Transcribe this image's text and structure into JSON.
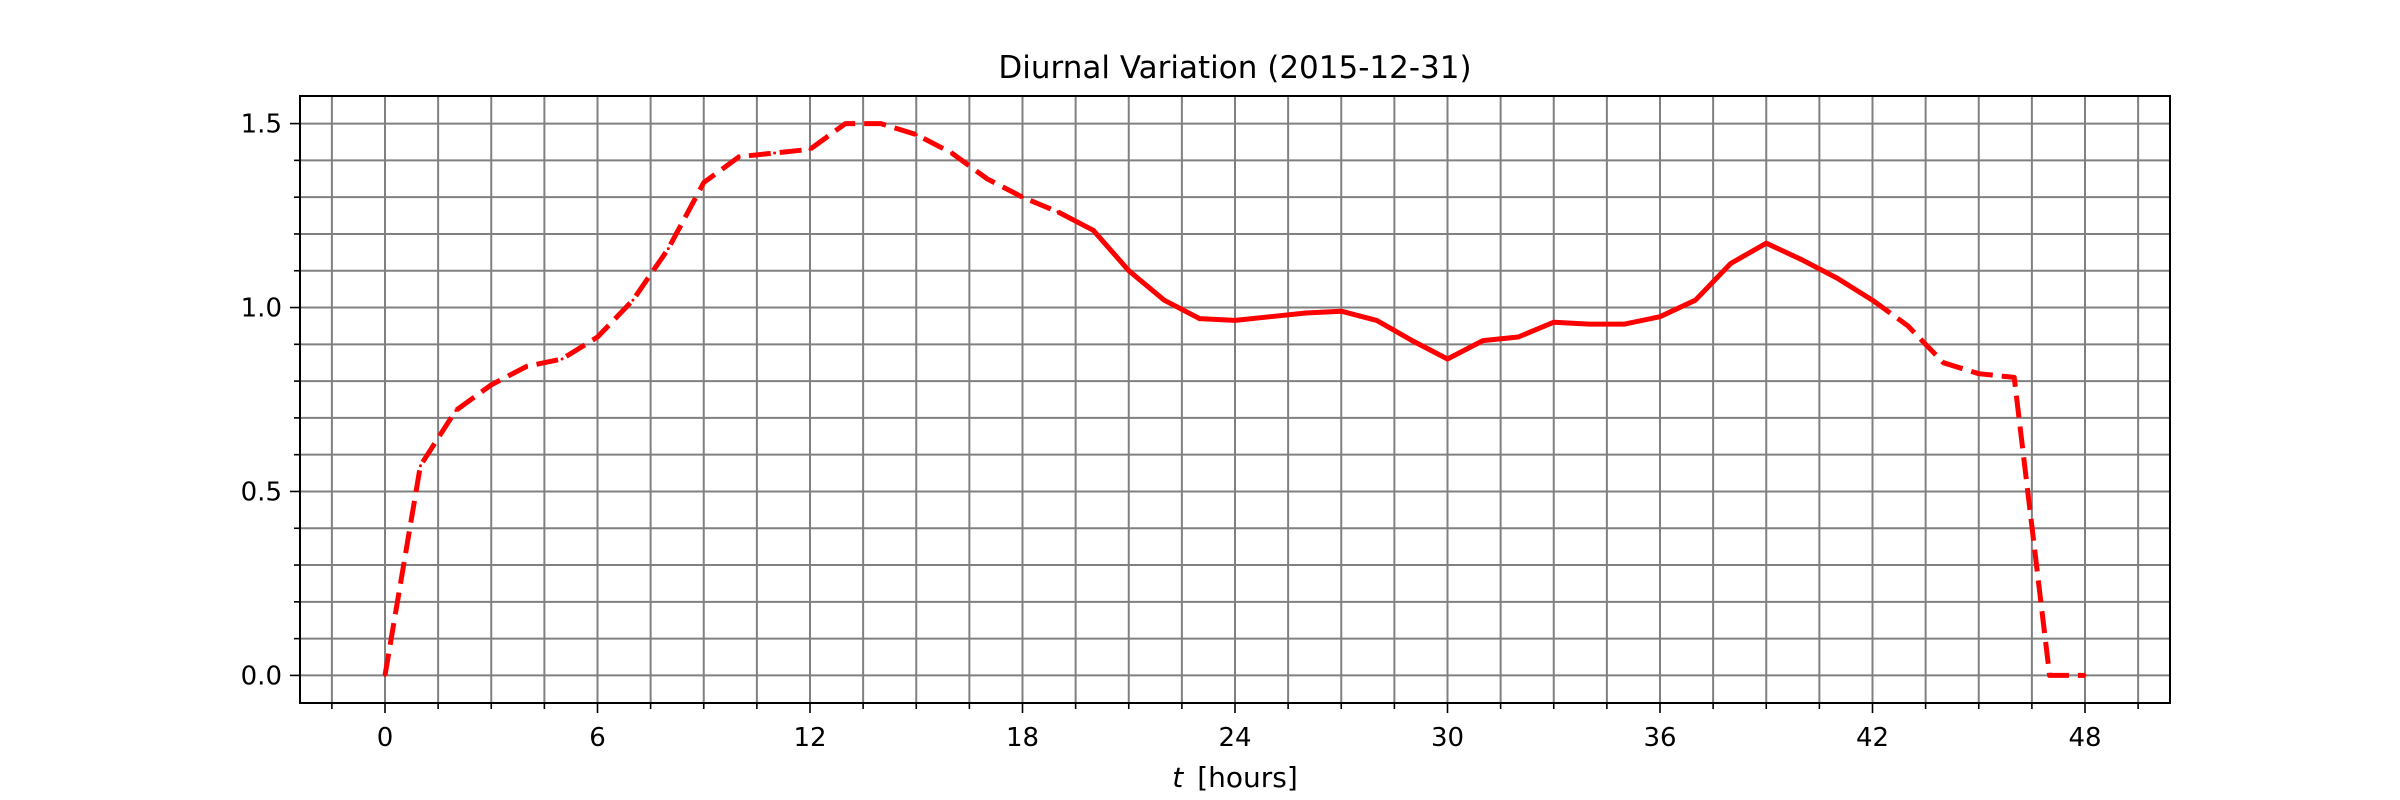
{
  "chart_data": {
    "type": "line",
    "title": "Diurnal Variation (2015-12-31)",
    "xlabel_var": "t",
    "xlabel_unit": "[hours]",
    "ylabel": "",
    "xlim": [
      -2.4,
      50.4
    ],
    "ylim": [
      -0.075,
      1.575
    ],
    "x_major_ticks": [
      0,
      6,
      12,
      18,
      24,
      30,
      36,
      42,
      48
    ],
    "x_minor_step": 1.5,
    "y_major_ticks": [
      0.0,
      0.5,
      1.0,
      1.5
    ],
    "y_tick_labels": [
      "0.0",
      "0.5",
      "1.0",
      "1.5"
    ],
    "y_minor_step": 0.1,
    "grid": true,
    "grid_color": "#808080",
    "series": [
      {
        "color": "#ff0000",
        "x": [
          0,
          1,
          2,
          3,
          4,
          5,
          6,
          7,
          8,
          9,
          10,
          11,
          12,
          13,
          14,
          15,
          16,
          17,
          18,
          19,
          20,
          21,
          22,
          23,
          24,
          25,
          26,
          27,
          28,
          29,
          30,
          31,
          32,
          33,
          34,
          35,
          36,
          37,
          38,
          39,
          40,
          41,
          42,
          43,
          44,
          45,
          46,
          47,
          48
        ],
        "y": [
          0.0,
          0.57,
          0.72,
          0.79,
          0.84,
          0.86,
          0.92,
          1.02,
          1.16,
          1.34,
          1.41,
          1.42,
          1.43,
          1.5,
          1.5,
          1.47,
          1.42,
          1.35,
          1.3,
          1.26,
          1.21,
          1.1,
          1.02,
          0.97,
          0.965,
          0.975,
          0.985,
          0.99,
          0.965,
          0.91,
          0.86,
          0.91,
          0.92,
          0.96,
          0.955,
          0.955,
          0.975,
          1.02,
          1.12,
          1.175,
          1.13,
          1.08,
          1.02,
          0.95,
          0.85,
          0.82,
          0.81,
          0.0,
          0.0
        ],
        "segment_styles": [
          {
            "from": 0,
            "to": 19,
            "style": "dashed"
          },
          {
            "from": 19,
            "to": 42,
            "style": "solid"
          },
          {
            "from": 42,
            "to": 48,
            "style": "dashed"
          }
        ]
      }
    ]
  }
}
